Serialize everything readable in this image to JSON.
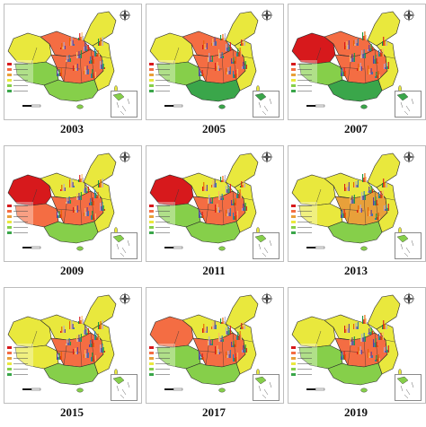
{
  "colors": {
    "high": "#d7191c",
    "upper": "#f46d43",
    "mid": "#e8a03a",
    "lower": "#e9e83d",
    "low": "#86cf4a",
    "lowest": "#3aa64a",
    "bar_palette": [
      "#d7191c",
      "#e66101",
      "#fdb863",
      "#b2abd2",
      "#5e3c99",
      "#2c7bb6",
      "#1a9641"
    ]
  },
  "panels": [
    {
      "year": "2003",
      "west": "lower",
      "north": "upper",
      "center": "upper",
      "south": "low",
      "east": "lower",
      "northeast": "lower",
      "tibet": "low"
    },
    {
      "year": "2005",
      "west": "lower",
      "north": "upper",
      "center": "upper",
      "south": "lowest",
      "east": "lower",
      "northeast": "lower",
      "tibet": "low"
    },
    {
      "year": "2007",
      "west": "high",
      "north": "upper",
      "center": "upper",
      "south": "lowest",
      "east": "lower",
      "northeast": "lower",
      "tibet": "low"
    },
    {
      "year": "2009",
      "west": "high",
      "north": "lower",
      "center": "upper",
      "south": "low",
      "east": "lower",
      "northeast": "lower",
      "tibet": "upper"
    },
    {
      "year": "2011",
      "west": "high",
      "north": "lower",
      "center": "upper",
      "south": "low",
      "east": "lower",
      "northeast": "lower",
      "tibet": "low"
    },
    {
      "year": "2013",
      "west": "lower",
      "north": "lower",
      "center": "mid",
      "south": "low",
      "east": "lower",
      "northeast": "lower",
      "tibet": "lower"
    },
    {
      "year": "2015",
      "west": "lower",
      "north": "lower",
      "center": "upper",
      "south": "low",
      "east": "lower",
      "northeast": "lower",
      "tibet": "lower"
    },
    {
      "year": "2017",
      "west": "upper",
      "north": "lower",
      "center": "upper",
      "south": "low",
      "east": "lower",
      "northeast": "lower",
      "tibet": "low"
    },
    {
      "year": "2019",
      "west": "lower",
      "north": "lower",
      "center": "upper",
      "south": "low",
      "east": "lower",
      "northeast": "lower",
      "tibet": "low"
    }
  ]
}
